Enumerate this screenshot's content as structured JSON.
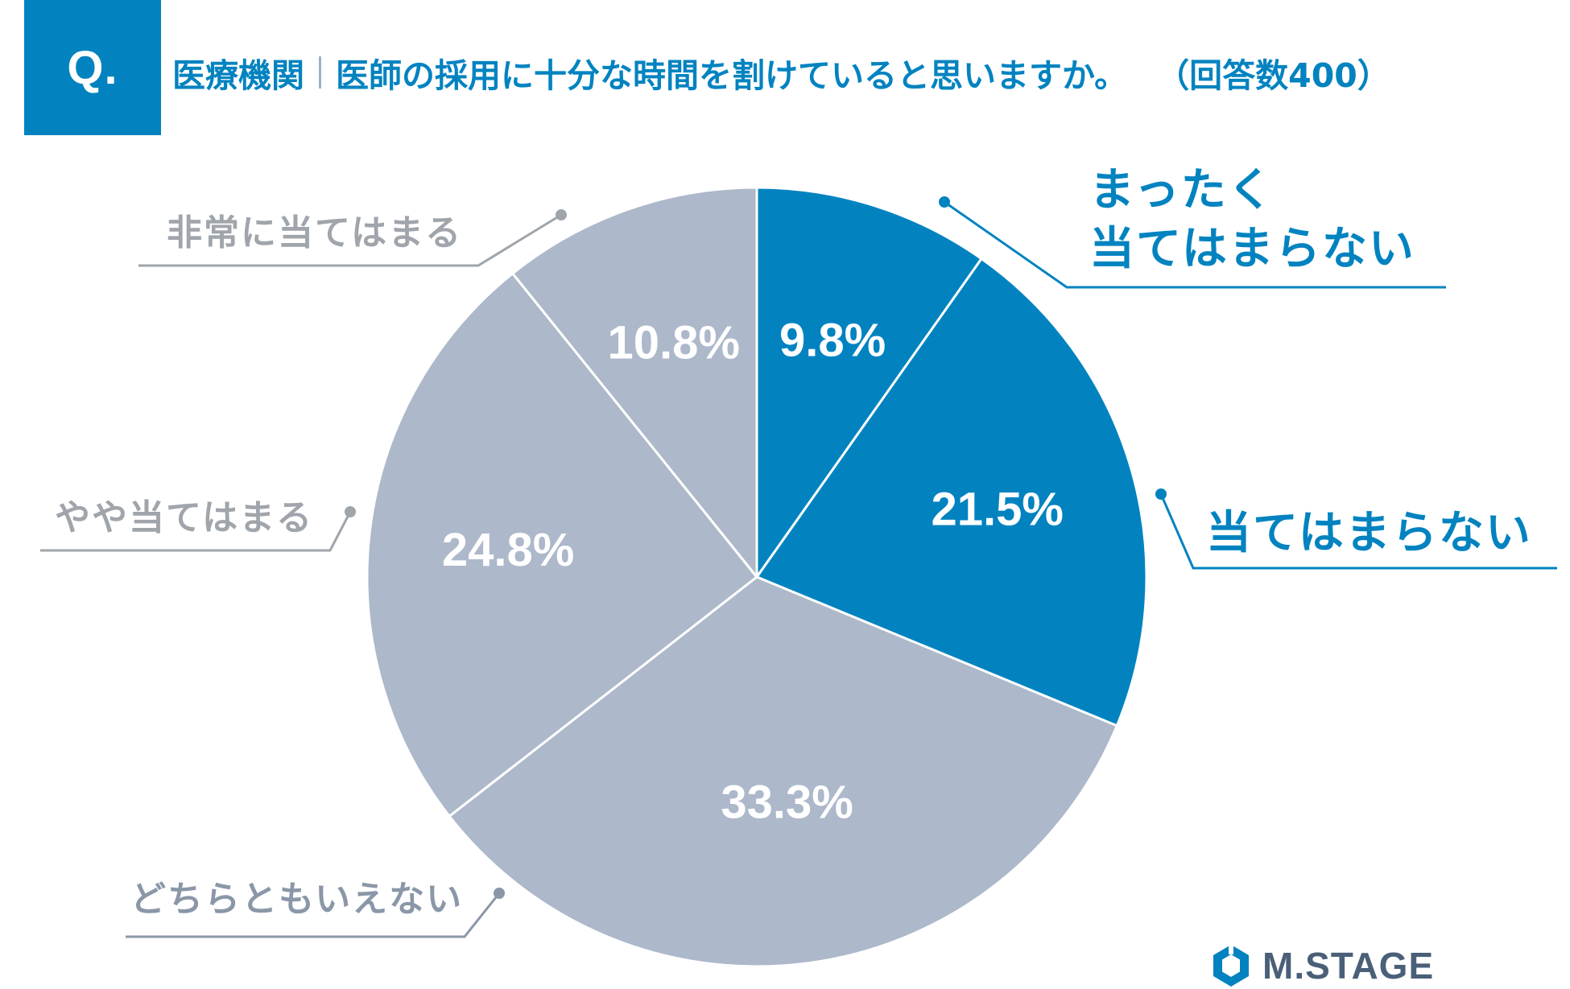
{
  "header": {
    "badge": "Q.",
    "category": "医療機関",
    "question": "医師の採用に十分な時間を割けていると思いますか。",
    "respondents": "（回答数400）"
  },
  "colors": {
    "accent": "#0283c0",
    "neutral": "#adb8ca",
    "label_gray": "#9fa5ab",
    "label_slate": "#8a97a8",
    "logo": "#4a5f78"
  },
  "logo": {
    "text": "M.STAGE",
    "icon": "hexagon-logo-icon"
  },
  "chart_data": {
    "type": "pie",
    "start_angle": "12 o'clock",
    "direction": "clockwise",
    "slices": [
      {
        "label": "まったく当てはまらない",
        "label_lines": [
          "まったく",
          "当てはまらない"
        ],
        "value": 9.8,
        "value_label": "9.8%",
        "color": "#0283c0"
      },
      {
        "label": "当てはまらない",
        "label_lines": [
          "当てはまらない"
        ],
        "value": 21.5,
        "value_label": "21.5%",
        "color": "#0283c0"
      },
      {
        "label": "どちらともいえない",
        "label_lines": [
          "どちらともいえない"
        ],
        "value": 33.3,
        "value_label": "33.3%",
        "color": "#adb8ca"
      },
      {
        "label": "やや当てはまる",
        "label_lines": [
          "やや当てはまる"
        ],
        "value": 24.8,
        "value_label": "24.8%",
        "color": "#adb8ca"
      },
      {
        "label": "非常に当てはまる",
        "label_lines": [
          "非常に当てはまる"
        ],
        "value": 10.8,
        "value_label": "10.8%",
        "color": "#adb8ca"
      }
    ]
  }
}
